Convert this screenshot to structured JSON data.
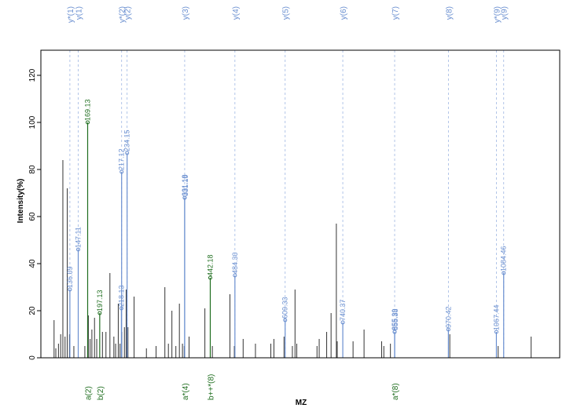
{
  "chart_data": {
    "type": "bar",
    "title": "",
    "xlabel": "MZ",
    "ylabel": "Intensity(%)",
    "ylim": [
      0,
      130
    ],
    "xlim": [
      0,
      1180
    ],
    "y_ticks": [
      "0",
      "20",
      "40",
      "60",
      "80",
      "100",
      "120"
    ],
    "grid": false,
    "colors": {
      "unmatched": "#333333",
      "y_ion": "#6a8fd0",
      "b_ion": "#1f6e1f"
    },
    "unmatched_peaks": [
      {
        "mz": 30,
        "i": 16
      },
      {
        "mz": 34,
        "i": 4
      },
      {
        "mz": 40,
        "i": 6
      },
      {
        "mz": 45,
        "i": 10
      },
      {
        "mz": 50,
        "i": 84
      },
      {
        "mz": 55,
        "i": 9
      },
      {
        "mz": 60,
        "i": 72
      },
      {
        "mz": 65,
        "i": 10
      },
      {
        "mz": 75,
        "i": 5
      },
      {
        "mz": 100,
        "i": 5
      },
      {
        "mz": 108,
        "i": 18
      },
      {
        "mz": 112,
        "i": 8
      },
      {
        "mz": 116,
        "i": 12
      },
      {
        "mz": 122,
        "i": 17
      },
      {
        "mz": 127,
        "i": 8
      },
      {
        "mz": 140,
        "i": 11
      },
      {
        "mz": 148,
        "i": 11
      },
      {
        "mz": 157,
        "i": 36
      },
      {
        "mz": 166,
        "i": 9
      },
      {
        "mz": 170,
        "i": 6
      },
      {
        "mz": 176,
        "i": 23
      },
      {
        "mz": 180,
        "i": 6
      },
      {
        "mz": 184,
        "i": 11
      },
      {
        "mz": 190,
        "i": 13
      },
      {
        "mz": 194,
        "i": 29
      },
      {
        "mz": 198,
        "i": 13
      },
      {
        "mz": 212,
        "i": 26
      },
      {
        "mz": 240,
        "i": 4
      },
      {
        "mz": 262,
        "i": 5
      },
      {
        "mz": 282,
        "i": 30
      },
      {
        "mz": 290,
        "i": 6
      },
      {
        "mz": 298,
        "i": 20
      },
      {
        "mz": 307,
        "i": 5
      },
      {
        "mz": 315,
        "i": 23
      },
      {
        "mz": 322,
        "i": 6
      },
      {
        "mz": 326,
        "i": 5
      },
      {
        "mz": 337,
        "i": 9
      },
      {
        "mz": 373,
        "i": 21
      },
      {
        "mz": 390,
        "i": 5
      },
      {
        "mz": 430,
        "i": 27
      },
      {
        "mz": 440,
        "i": 5
      },
      {
        "mz": 460,
        "i": 8
      },
      {
        "mz": 488,
        "i": 6
      },
      {
        "mz": 523,
        "i": 6
      },
      {
        "mz": 530,
        "i": 8
      },
      {
        "mz": 553,
        "i": 9
      },
      {
        "mz": 572,
        "i": 5
      },
      {
        "mz": 578,
        "i": 29
      },
      {
        "mz": 582,
        "i": 6
      },
      {
        "mz": 628,
        "i": 5
      },
      {
        "mz": 633,
        "i": 8
      },
      {
        "mz": 650,
        "i": 11
      },
      {
        "mz": 660,
        "i": 19
      },
      {
        "mz": 672,
        "i": 57
      },
      {
        "mz": 674,
        "i": 7
      },
      {
        "mz": 710,
        "i": 7
      },
      {
        "mz": 735,
        "i": 12
      },
      {
        "mz": 775,
        "i": 7
      },
      {
        "mz": 780,
        "i": 5
      },
      {
        "mz": 795,
        "i": 6
      },
      {
        "mz": 930,
        "i": 10
      },
      {
        "mz": 1040,
        "i": 5
      },
      {
        "mz": 1115,
        "i": 9
      }
    ],
    "y_ion_peaks": [
      {
        "mz": 65.99,
        "i": 29,
        "label": "136.09"
      },
      {
        "mz": 84.95,
        "i": 46,
        "label": "147.11"
      },
      {
        "mz": 183.65,
        "i": 79,
        "label": "217.12"
      },
      {
        "mz": 196.11,
        "i": 87,
        "label": "234.15"
      },
      {
        "mz": 183.12,
        "i": 21,
        "label": "218.13"
      },
      {
        "mz": 327.06,
        "i": 68,
        "label": "331.18"
      },
      {
        "mz": 327.06,
        "i": 68,
        "label": "331.19"
      },
      {
        "mz": 441.31,
        "i": 35,
        "label": "484.30"
      },
      {
        "mz": 555.56,
        "i": 16,
        "label": "609.33"
      },
      {
        "mz": 686.66,
        "i": 15,
        "label": "740.37"
      },
      {
        "mz": 804.6,
        "i": 11,
        "label": "855.39"
      },
      {
        "mz": 804.6,
        "i": 11,
        "label": "855.38"
      },
      {
        "mz": 926.8,
        "i": 12,
        "label": "970.42"
      },
      {
        "mz": 1035.97,
        "i": 11,
        "label": "1067.44"
      },
      {
        "mz": 1052.59,
        "i": 36,
        "label": "1084.46"
      }
    ],
    "b_ion_peaks": [
      {
        "mz": 106.38,
        "i": 100,
        "label": "169.13"
      },
      {
        "mz": 133.83,
        "i": 19,
        "label": "197.13"
      },
      {
        "mz": 385.25,
        "i": 34,
        "label": "442.18"
      }
    ],
    "top_ion_labels": [
      {
        "label": "y(1)",
        "mz": 84.95,
        "dashed": true
      },
      {
        "label": "y*(1)",
        "mz": 65.99,
        "dashed": true
      },
      {
        "label": "y(2)",
        "mz": 196.11,
        "dashed": true
      },
      {
        "label": "y*(2)",
        "mz": 183.65,
        "dashed": true
      },
      {
        "label": "y(3)",
        "mz": 327.06,
        "dashed": true
      },
      {
        "label": "y(4)",
        "mz": 441.31,
        "dashed": true
      },
      {
        "label": "y(5)",
        "mz": 555.56,
        "dashed": true
      },
      {
        "label": "y(6)",
        "mz": 686.66,
        "dashed": true
      },
      {
        "label": "y(7)",
        "mz": 804.6,
        "dashed": true
      },
      {
        "label": "y(8)",
        "mz": 926.8,
        "dashed": true
      },
      {
        "label": "y(9)",
        "mz": 1052.59,
        "dashed": true
      },
      {
        "label": "y*(9)",
        "mz": 1035.97,
        "dashed": true
      }
    ],
    "bottom_ion_labels": [
      {
        "label": "a(2)",
        "mz": 106.38
      },
      {
        "label": "b(2)",
        "mz": 133.83
      },
      {
        "label": "a*(4)",
        "mz": 327.06
      },
      {
        "label": "b++*(8)",
        "mz": 385.25
      },
      {
        "label": "a*(8)",
        "mz": 804.6
      }
    ]
  }
}
